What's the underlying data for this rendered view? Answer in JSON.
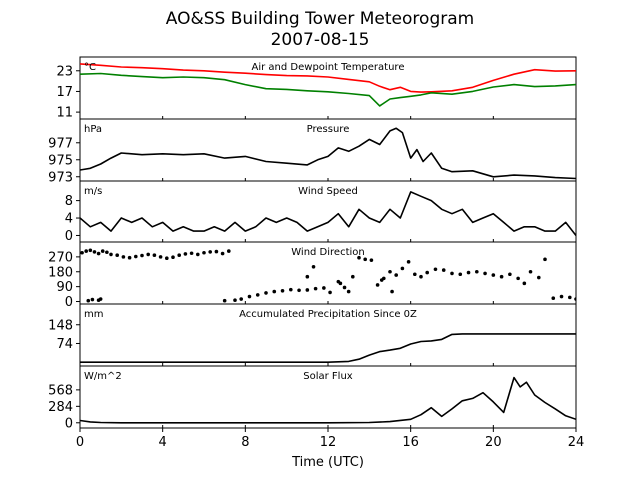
{
  "figure": {
    "title_line1": "AO&SS Building Tower Meteorogram",
    "title_line2": "2007-08-15",
    "xlabel": "Time (UTC)",
    "xticks": [
      0,
      4,
      8,
      12,
      16,
      20,
      24
    ],
    "xlim": [
      0,
      24
    ]
  },
  "chart_data": [
    {
      "type": "line",
      "title": "Air and Dewpoint Temperature",
      "unit": "°C",
      "ylim": [
        9,
        27
      ],
      "yticks": [
        11,
        17,
        23
      ],
      "series": [
        {
          "name": "Air Temperature",
          "color": "#ff0000",
          "x": [
            0,
            1,
            2,
            3,
            4,
            5,
            6,
            7,
            8,
            9,
            10,
            11,
            12,
            13,
            14,
            14.5,
            15,
            15.5,
            16,
            16.5,
            17,
            18,
            19,
            20,
            21,
            22,
            23,
            24
          ],
          "y": [
            25.0,
            24.6,
            24.1,
            23.9,
            23.6,
            23.2,
            23.0,
            22.6,
            22.3,
            21.9,
            21.6,
            21.5,
            21.2,
            20.5,
            19.8,
            18.5,
            17.5,
            18.2,
            17.0,
            16.8,
            16.9,
            17.2,
            18.2,
            20.2,
            22.0,
            23.3,
            22.9,
            23.0
          ]
        },
        {
          "name": "Dewpoint Temperature",
          "color": "#008000",
          "x": [
            0,
            1,
            2,
            3,
            4,
            5,
            6,
            7,
            8,
            9,
            10,
            11,
            12,
            13,
            14,
            14.5,
            15,
            15.5,
            16,
            16.5,
            17,
            18,
            19,
            20,
            21,
            22,
            23,
            24
          ],
          "y": [
            22.0,
            22.2,
            21.7,
            21.3,
            21.0,
            21.2,
            21.0,
            20.4,
            19.0,
            17.8,
            17.6,
            17.2,
            16.9,
            16.4,
            15.8,
            12.8,
            14.8,
            15.2,
            15.6,
            16.0,
            16.6,
            16.2,
            17.0,
            18.3,
            19.0,
            18.4,
            18.6,
            19.0
          ]
        }
      ]
    },
    {
      "type": "line",
      "title": "Pressure",
      "unit": "hPa",
      "ylim": [
        972.5,
        979.8
      ],
      "yticks": [
        973,
        975,
        977
      ],
      "series": [
        {
          "color": "#000000",
          "x": [
            0,
            0.5,
            1,
            1.5,
            2,
            3,
            4,
            5,
            6,
            7,
            8,
            9,
            10,
            11,
            11.5,
            12,
            12.5,
            13,
            13.5,
            14,
            14.5,
            15,
            15.3,
            15.6,
            16,
            16.3,
            16.6,
            17,
            17.5,
            18,
            19,
            20,
            21,
            22,
            23,
            24
          ],
          "y": [
            973.8,
            974.0,
            974.5,
            975.2,
            975.8,
            975.6,
            975.7,
            975.6,
            975.7,
            975.2,
            975.4,
            974.8,
            974.6,
            974.4,
            975.0,
            975.4,
            976.4,
            976.0,
            976.6,
            977.4,
            976.8,
            978.4,
            978.7,
            978.2,
            975.2,
            976.2,
            974.8,
            975.8,
            974.0,
            973.6,
            973.7,
            973.0,
            973.2,
            973.1,
            972.9,
            972.8
          ]
        }
      ]
    },
    {
      "type": "line",
      "title": "Wind Speed",
      "unit": "m/s",
      "ylim": [
        -1.5,
        12.5
      ],
      "yticks": [
        0,
        4,
        8
      ],
      "series": [
        {
          "color": "#000000",
          "x": [
            0,
            0.5,
            1,
            1.5,
            2,
            2.5,
            3,
            3.5,
            4,
            4.5,
            5,
            5.5,
            6,
            6.5,
            7,
            7.5,
            8,
            8.5,
            9,
            9.5,
            10,
            10.5,
            11,
            11.5,
            12,
            12.5,
            13,
            13.5,
            14,
            14.5,
            15,
            15.5,
            16,
            16.5,
            17,
            17.5,
            18,
            18.5,
            19,
            19.5,
            20,
            20.5,
            21,
            21.5,
            22,
            22.5,
            23,
            23.5,
            24
          ],
          "y": [
            4,
            2,
            3,
            1,
            4,
            3,
            4,
            2,
            3,
            1,
            2,
            1,
            1,
            2,
            1,
            3,
            1,
            2,
            4,
            3,
            4,
            3,
            1,
            2,
            3,
            5,
            2,
            6,
            4,
            3,
            6,
            4,
            10,
            9,
            8,
            6,
            5,
            6,
            3,
            4,
            5,
            3,
            1,
            2,
            2,
            1,
            1,
            3,
            0
          ]
        }
      ]
    },
    {
      "type": "scatter",
      "title": "Wind Direction",
      "ylim": [
        -15,
        360
      ],
      "yticks": [
        0,
        90,
        180,
        270
      ],
      "series": [
        {
          "color": "#000000",
          "x": [
            0.1,
            0.3,
            0.5,
            0.7,
            0.9,
            1.1,
            1.3,
            1.5,
            1.8,
            2.1,
            2.4,
            2.7,
            3.0,
            3.3,
            3.6,
            3.9,
            4.2,
            4.5,
            4.8,
            5.1,
            5.4,
            5.7,
            6.0,
            6.3,
            6.6,
            6.9,
            7.2,
            0.4,
            0.6,
            0.9,
            1.0,
            7.0,
            7.5,
            7.8,
            8.2,
            8.6,
            9.0,
            9.4,
            9.8,
            10.2,
            10.6,
            11.0,
            11.4,
            11.8,
            12.1,
            12.5,
            12.8,
            13.2,
            13.5,
            13.8,
            14.1,
            14.4,
            14.7,
            15.0,
            15.3,
            15.6,
            15.9,
            16.2,
            16.5,
            16.8,
            17.2,
            17.6,
            18.0,
            18.4,
            18.8,
            19.2,
            19.6,
            20.0,
            20.4,
            20.8,
            21.2,
            21.5,
            21.8,
            22.2,
            22.5,
            22.9,
            23.3,
            23.7,
            24.0,
            11.0,
            11.3,
            12.6,
            13.0,
            14.6,
            15.1
          ],
          "y": [
            295,
            305,
            310,
            300,
            290,
            305,
            298,
            285,
            280,
            270,
            265,
            272,
            278,
            285,
            280,
            270,
            262,
            268,
            280,
            288,
            292,
            285,
            295,
            300,
            302,
            290,
            305,
            5,
            12,
            8,
            15,
            5,
            8,
            15,
            30,
            40,
            52,
            60,
            65,
            72,
            68,
            70,
            78,
            82,
            55,
            120,
            85,
            150,
            265,
            255,
            250,
            100,
            140,
            180,
            160,
            200,
            240,
            165,
            150,
            175,
            195,
            190,
            170,
            165,
            175,
            180,
            170,
            160,
            150,
            165,
            140,
            110,
            180,
            145,
            255,
            20,
            30,
            25,
            15,
            150,
            210,
            110,
            60,
            130,
            60
          ]
        }
      ]
    },
    {
      "type": "line",
      "title": "Accumulated Precipitation Since 0Z",
      "unit": "mm",
      "ylim": [
        -15,
        230
      ],
      "yticks": [
        74,
        148
      ],
      "series": [
        {
          "color": "#000000",
          "x": [
            0,
            12,
            13,
            13.5,
            14,
            14.5,
            15,
            15.5,
            16,
            16.5,
            17,
            17.5,
            18,
            18.5,
            24
          ],
          "y": [
            0,
            0,
            3,
            12,
            28,
            42,
            48,
            55,
            72,
            82,
            84,
            90,
            110,
            112,
            112
          ]
        }
      ]
    },
    {
      "type": "line",
      "title": "Solar Flux",
      "unit": "W/m^2",
      "ylim": [
        -90,
        980
      ],
      "yticks": [
        0,
        284,
        568
      ],
      "series": [
        {
          "color": "#000000",
          "x": [
            0,
            0.5,
            1,
            2,
            4,
            8,
            12,
            14,
            15,
            16,
            16.5,
            17,
            17.5,
            18,
            18.5,
            19,
            19.5,
            20,
            20.5,
            21,
            21.3,
            21.6,
            22,
            22.5,
            23,
            23.5,
            24
          ],
          "y": [
            40,
            15,
            5,
            0,
            0,
            0,
            0,
            5,
            20,
            60,
            140,
            260,
            110,
            240,
            380,
            420,
            520,
            360,
            180,
            780,
            620,
            700,
            480,
            350,
            240,
            120,
            60
          ]
        }
      ]
    }
  ]
}
